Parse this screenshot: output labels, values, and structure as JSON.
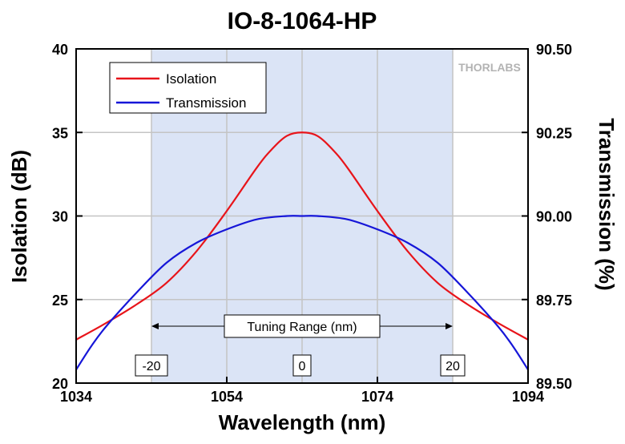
{
  "chart_data": {
    "type": "line",
    "title": "IO-8-1064-HP",
    "xlabel": "Wavelength (nm)",
    "ylabel_left": "Isolation (dB)",
    "ylabel_right": "Transmission (%)",
    "xlim": [
      1034,
      1094
    ],
    "ylim_left": [
      20,
      40
    ],
    "ylim_right": [
      89.5,
      90.5
    ],
    "x_ticks": [
      "1034",
      "1054",
      "1074",
      "1094"
    ],
    "y_left_ticks": [
      "20",
      "25",
      "30",
      "35",
      "40"
    ],
    "y_right_ticks": [
      "89.50",
      "89.75",
      "90.00",
      "90.25",
      "90.50"
    ],
    "grid": true,
    "legend_position": "top-left",
    "series": [
      {
        "name": "Isolation",
        "axis": "left",
        "color": "#e8141a",
        "x": [
          1034,
          1038,
          1042,
          1046,
          1050,
          1054,
          1058,
          1060,
          1062,
          1064,
          1066,
          1068,
          1070,
          1074,
          1078,
          1082,
          1086,
          1090,
          1094
        ],
        "y": [
          22.6,
          23.6,
          24.7,
          26.0,
          27.9,
          30.3,
          32.9,
          34.0,
          34.8,
          35.0,
          34.8,
          34.0,
          32.9,
          30.3,
          27.9,
          26.0,
          24.7,
          23.6,
          22.6
        ]
      },
      {
        "name": "Transmission",
        "axis": "right",
        "color": "#1616d8",
        "x": [
          1034,
          1036,
          1038,
          1042,
          1046,
          1050,
          1054,
          1058,
          1062,
          1064,
          1066,
          1070,
          1074,
          1078,
          1082,
          1086,
          1090,
          1092,
          1094
        ],
        "y": [
          89.54,
          89.61,
          89.67,
          89.77,
          89.86,
          89.92,
          89.96,
          89.99,
          90.0,
          90.0,
          90.0,
          89.99,
          89.96,
          89.92,
          89.86,
          89.77,
          89.67,
          89.61,
          89.54
        ]
      }
    ],
    "tuning_range": {
      "x_start": 1044,
      "x_end": 1084,
      "label": "Tuning Range (nm)",
      "color": "#dbe4f6",
      "markers": [
        {
          "x": 1044,
          "label": "-20"
        },
        {
          "x": 1064,
          "label": "0"
        },
        {
          "x": 1084,
          "label": "20"
        }
      ]
    },
    "watermark": "THORLABS"
  }
}
